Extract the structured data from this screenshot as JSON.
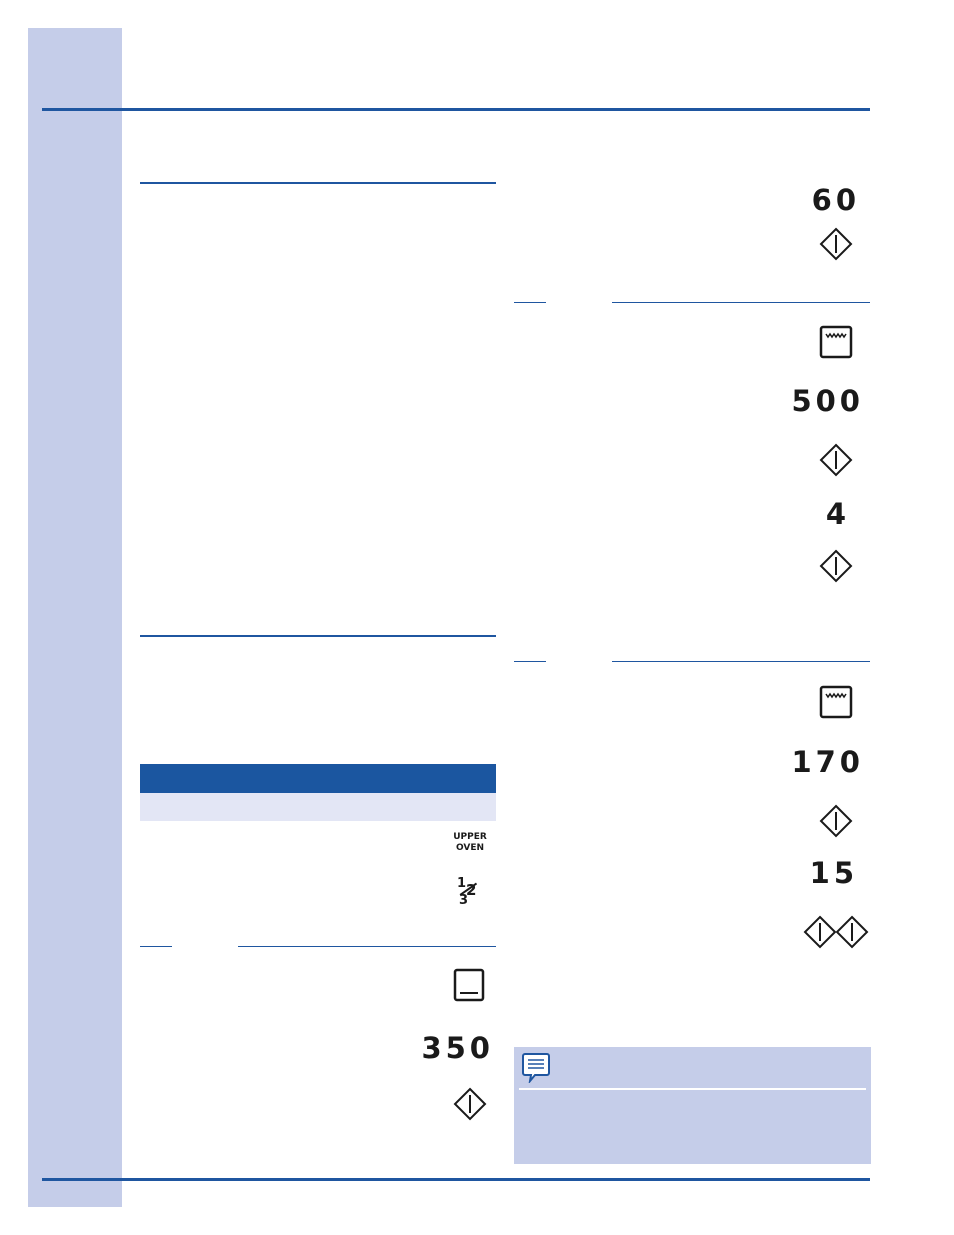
{
  "left_column": {
    "upper_oven_key": {
      "line1": "UPPER",
      "line2": "OVEN",
      "icon": "upper-oven-key-icon"
    },
    "rack_key": {
      "n1": "1",
      "n2": "2",
      "n3": "3",
      "icon": "rack-position-key-icon"
    },
    "example": {
      "pad_icon": "lower-oven-bake-pad-icon",
      "value": "350",
      "start_icon": "start-diamond-icon"
    }
  },
  "right_column": {
    "top": {
      "value": "60",
      "start_icon": "start-diamond-icon"
    },
    "example_1": {
      "pad_icon": "oven-broil-pad-icon",
      "temperature": "500",
      "start_icon_1": "start-diamond-icon",
      "time": "4",
      "start_icon_2": "start-diamond-icon"
    },
    "example_2": {
      "pad_icon": "oven-broil-pad-icon",
      "temperature": "170",
      "start_icon": "start-diamond-icon",
      "time": "15",
      "double_start_icon": "double-start-diamond-icon"
    },
    "note": {
      "icon": "note-speech-bubble-icon"
    }
  },
  "colors": {
    "accent_blue": "#1f56a0",
    "sidebar_lavender": "#c5cde9",
    "table_subrow": "#e3e6f5"
  }
}
